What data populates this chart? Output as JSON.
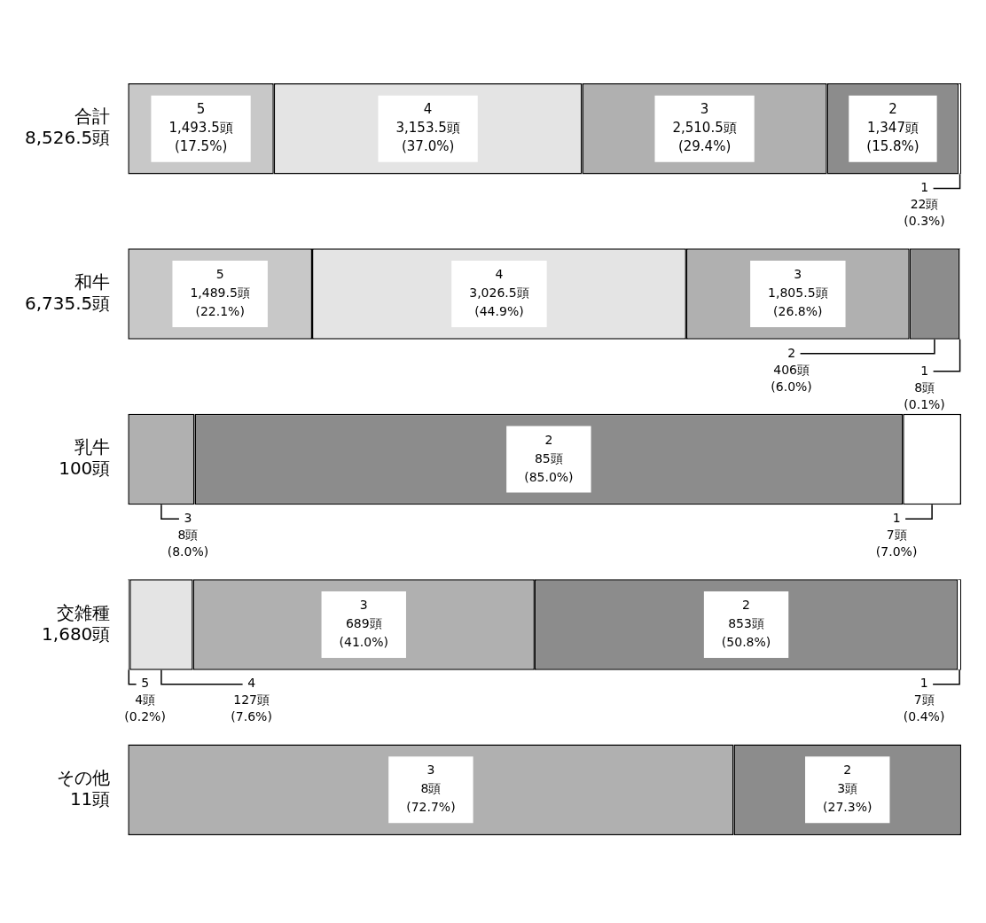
{
  "chart_data": {
    "type": "bar",
    "orientation": "horizontal",
    "stacked": true,
    "legend": false,
    "grid": false,
    "tick_labels": "y",
    "categories": [
      "合計\n8,526.5頭",
      "和牛\n6,735.5頭",
      "乳牛\n100頭",
      "交雑種\n1,680頭",
      "その他\n11頭"
    ],
    "series": [
      {
        "name": "5",
        "color": "#c8c8c8",
        "values": [
          17.5,
          22.1,
          null,
          0.2,
          null
        ],
        "value_labels": [
          "1,493.5頭\n(17.5%)",
          "1,489.5頭\n(22.1%)",
          null,
          "4頭\n(0.2%)",
          null
        ]
      },
      {
        "name": "4",
        "color": "#e4e4e4",
        "values": [
          37.0,
          44.9,
          null,
          7.6,
          null
        ],
        "value_labels": [
          "3,153.5頭\n(37.0%)",
          "3,026.5頭\n(44.9%)",
          null,
          "127頭\n(7.6%)",
          null
        ]
      },
      {
        "name": "3",
        "color": "#b0b0b0",
        "values": [
          29.4,
          26.8,
          8.0,
          41.0,
          72.7
        ],
        "value_labels": [
          "2,510.5頭\n(29.4%)",
          "1,805.5頭\n(26.8%)",
          "8頭\n(8.0%)",
          "689頭\n(41.0%)",
          "8頭\n(72.7%)"
        ]
      },
      {
        "name": "2",
        "color": "#8c8c8c",
        "values": [
          15.8,
          6.0,
          85.0,
          50.8,
          27.3
        ],
        "value_labels": [
          "1,347頭\n(15.8%)",
          "406頭\n(6.0%)",
          "85頭\n(85.0%)",
          "853頭\n(50.8%)",
          "3頭\n(27.3%)"
        ]
      },
      {
        "name": "1",
        "color": "#ffffff",
        "values": [
          0.3,
          0.1,
          7.0,
          0.4,
          null
        ],
        "value_labels": [
          "22頭\n(0.3%)",
          "8頭\n(0.1%)",
          "7頭\n(7.0%)",
          "7頭\n(0.4%)",
          null
        ]
      }
    ]
  }
}
